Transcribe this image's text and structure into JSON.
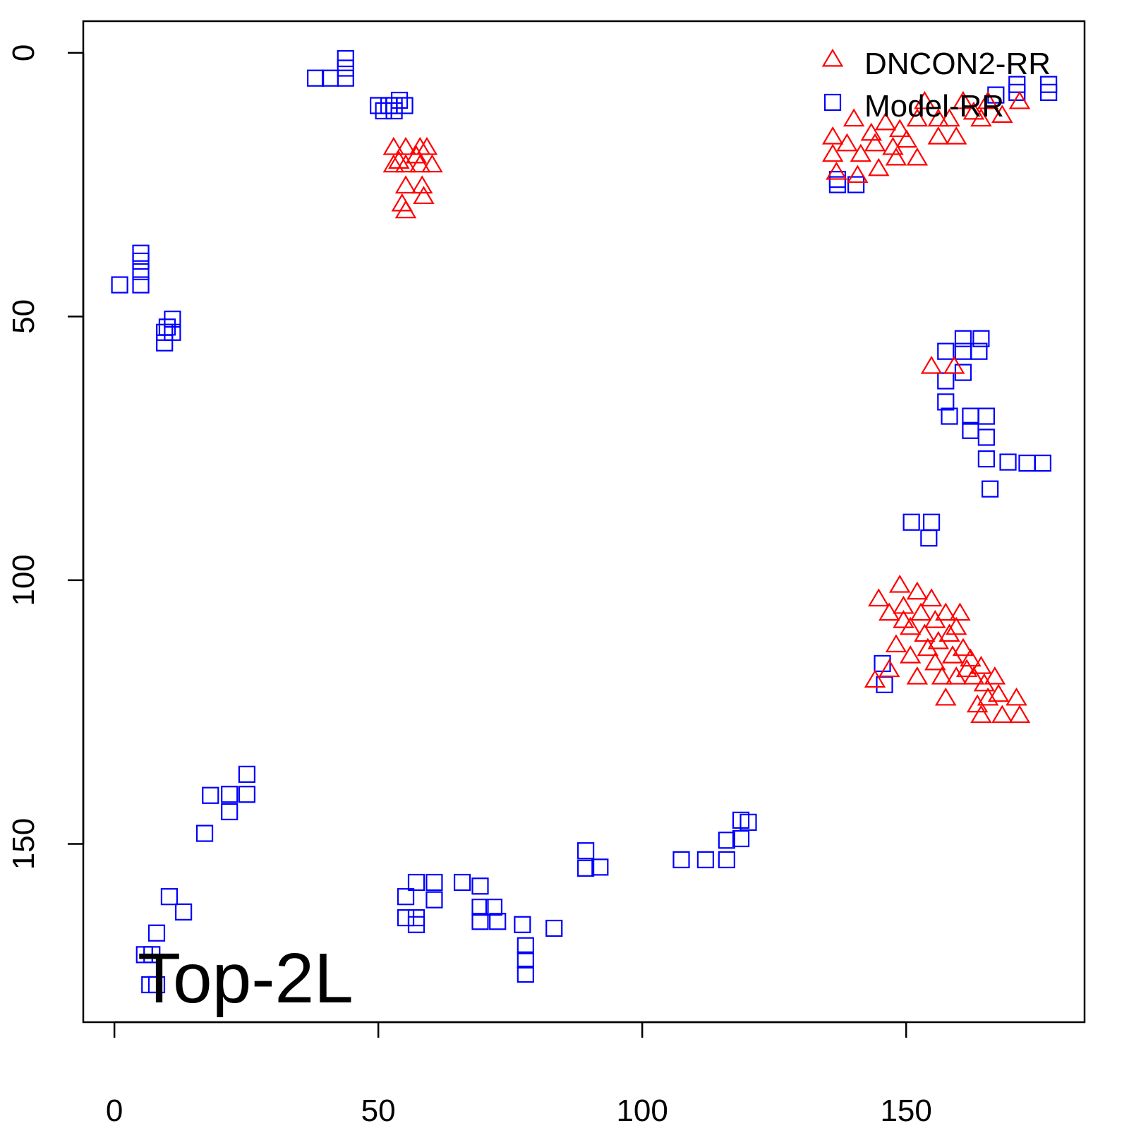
{
  "chart_data": {
    "type": "scatter",
    "annotation": "Top-2L",
    "legend": "topright",
    "xlim": [
      -5.9,
      183.8
    ],
    "ylim": [
      183.8,
      -6.0
    ],
    "xticks": [
      0,
      50,
      100,
      150
    ],
    "yticks": [
      0,
      50,
      100,
      150
    ],
    "series": [
      {
        "name": "Model-RR",
        "color": "#0000ff",
        "marker": "square",
        "x": [
          38.1,
          40.9,
          43.8,
          43.8,
          43.8,
          50.0,
          51.0,
          52.0,
          53.0,
          54.0,
          55.0,
          53.0,
          1.0,
          5.0,
          5.0,
          5.0,
          5.0,
          9.5,
          9.5,
          11.0,
          11.0,
          10.0,
          137.0,
          137.0,
          140.5,
          171.0,
          177.0,
          177.0,
          171.0,
          167.0,
          157.5,
          160.8,
          163.8,
          160.8,
          157.5,
          157.5,
          158.2,
          162.2,
          165.2,
          165.2,
          162.2,
          165.2,
          169.3,
          172.9,
          175.9,
          165.9,
          160.8,
          164.2,
          151.0,
          154.8,
          154.3,
          145.5,
          145.9,
          25.1,
          25.1,
          21.8,
          21.8,
          18.2,
          17.1,
          10.4,
          13.1,
          8.0,
          7.1,
          6.7,
          8.0,
          5.7,
          55.2,
          57.2,
          60.6,
          60.6,
          57.2,
          55.2,
          57.2,
          65.9,
          69.3,
          69.3,
          69.3,
          71.9,
          72.6,
          77.3,
          77.9,
          77.9,
          77.9,
          83.3,
          89.3,
          89.3,
          92.0,
          107.4,
          112.0,
          116.0,
          116.0,
          118.7,
          118.7,
          120.1
        ],
        "values": [
          4.8,
          4.8,
          4.8,
          2.9,
          1.1,
          10.0,
          11.0,
          10.0,
          10.0,
          9.0,
          10.0,
          11.0,
          44.0,
          44.0,
          41.5,
          39.5,
          38.0,
          55.0,
          53.0,
          53.0,
          50.5,
          52.0,
          25.0,
          24.0,
          25.0,
          6.0,
          6.0,
          7.5,
          7.5,
          8.0,
          56.6,
          56.6,
          56.6,
          60.6,
          62.2,
          66.2,
          68.9,
          68.9,
          68.9,
          72.9,
          71.6,
          77.0,
          77.6,
          77.8,
          77.8,
          82.7,
          54.2,
          54.2,
          89.0,
          89.0,
          92.0,
          115.8,
          119.8,
          136.8,
          140.6,
          140.6,
          143.9,
          140.8,
          148.0,
          160.0,
          162.9,
          166.9,
          171.0,
          176.7,
          176.7,
          171.0,
          160.0,
          157.3,
          157.3,
          160.6,
          164.0,
          164.0,
          165.3,
          157.3,
          158.0,
          162.0,
          164.7,
          162.0,
          164.7,
          165.3,
          169.3,
          172.0,
          174.7,
          166.0,
          151.3,
          154.6,
          154.4,
          153.0,
          153.0,
          153.0,
          149.3,
          145.5,
          149.0,
          145.9
        ]
      },
      {
        "name": "DNCON2-RR",
        "color": "#ff0000",
        "marker": "triangle",
        "x": [
          52.9,
          55.2,
          57.9,
          59.2,
          52.9,
          55.2,
          57.9,
          60.2,
          55.2,
          58.3,
          54.5,
          55.2,
          58.6,
          53.9,
          57.2,
          136.1,
          136.1,
          138.8,
          140.1,
          141.4,
          143.4,
          144.8,
          146.1,
          147.5,
          148.8,
          150.1,
          152.1,
          152.1,
          153.5,
          156.1,
          156.1,
          159.5,
          160.8,
          162.8,
          164.2,
          168.2,
          171.5,
          136.8,
          140.8,
          144.1,
          148.1,
          158.2,
          165.5,
          154.8,
          159.1,
          144.8,
          146.8,
          148.8,
          149.5,
          150.8,
          152.1,
          152.8,
          153.5,
          154.8,
          155.5,
          156.1,
          157.5,
          158.2,
          158.8,
          159.5,
          160.2,
          160.8,
          161.5,
          162.2,
          162.8,
          164.2,
          164.8,
          165.5,
          166.8,
          167.5,
          168.2,
          170.9,
          171.5,
          164.2,
          157.5,
          148.1,
          144.1,
          152.1,
          155.5,
          159.5,
          163.5,
          146.8,
          149.5,
          154.1,
          156.8,
          150.8
        ],
        "values": [
          18.1,
          18.1,
          18.1,
          18.1,
          21.4,
          21.4,
          21.4,
          21.4,
          25.4,
          25.4,
          28.8,
          30.1,
          27.4,
          20.7,
          19.7,
          16.1,
          19.4,
          17.4,
          12.7,
          19.4,
          15.4,
          22.1,
          13.4,
          18.1,
          14.7,
          16.7,
          12.7,
          20.1,
          9.4,
          12.7,
          16.1,
          16.1,
          9.4,
          11.4,
          12.7,
          12.0,
          9.4,
          22.8,
          23.4,
          17.4,
          20.1,
          12.7,
          9.4,
          59.6,
          59.6,
          103.7,
          106.4,
          101.1,
          105.1,
          109.1,
          102.4,
          106.4,
          110.4,
          103.7,
          107.8,
          111.8,
          106.4,
          110.4,
          114.5,
          109.1,
          106.4,
          113.1,
          117.1,
          115.1,
          118.5,
          116.5,
          119.8,
          122.5,
          118.5,
          121.8,
          125.8,
          122.5,
          125.8,
          125.8,
          122.5,
          112.4,
          119.1,
          118.5,
          115.8,
          118.5,
          123.8,
          117.1,
          107.8,
          113.1,
          118.5,
          114.5
        ]
      }
    ]
  }
}
